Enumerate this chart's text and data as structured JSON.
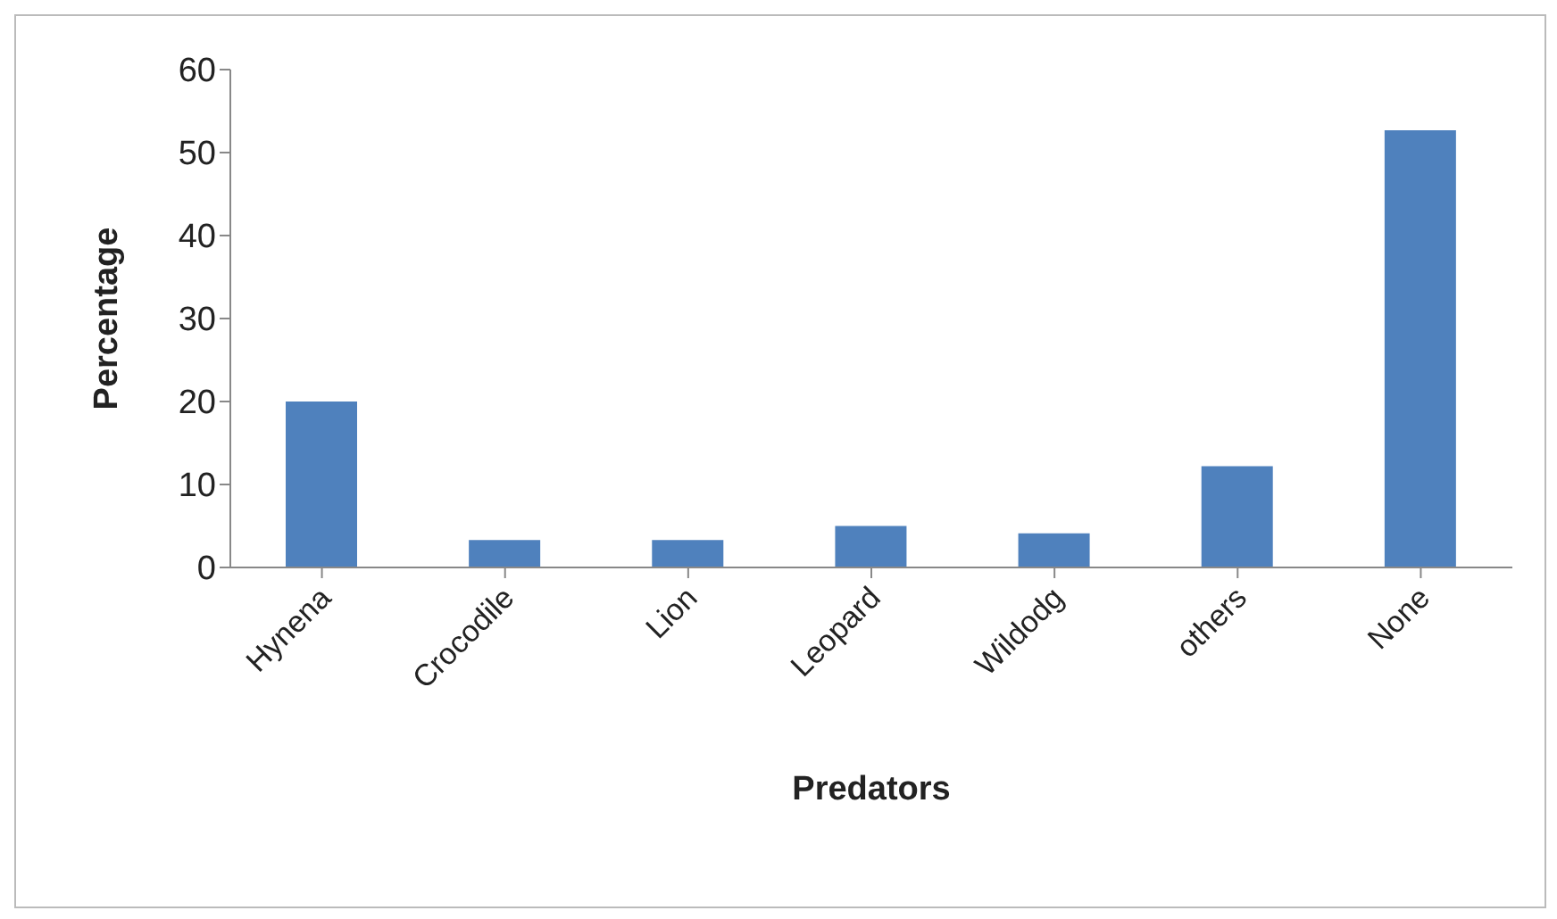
{
  "chart_data": {
    "type": "bar",
    "xlabel": "Predators",
    "ylabel": "Percentage",
    "categories": [
      "Hynena",
      "Crocodile",
      "Lion",
      "Leopard",
      "Wildodg",
      "others",
      "None"
    ],
    "values": [
      20,
      3.3,
      3.3,
      5,
      4.1,
      12.2,
      52.7
    ],
    "color": "#4f81bd",
    "ylim": [
      0,
      60
    ],
    "yticks": [
      0,
      10,
      20,
      30,
      40,
      50,
      60
    ],
    "grid": false,
    "legend": false
  }
}
